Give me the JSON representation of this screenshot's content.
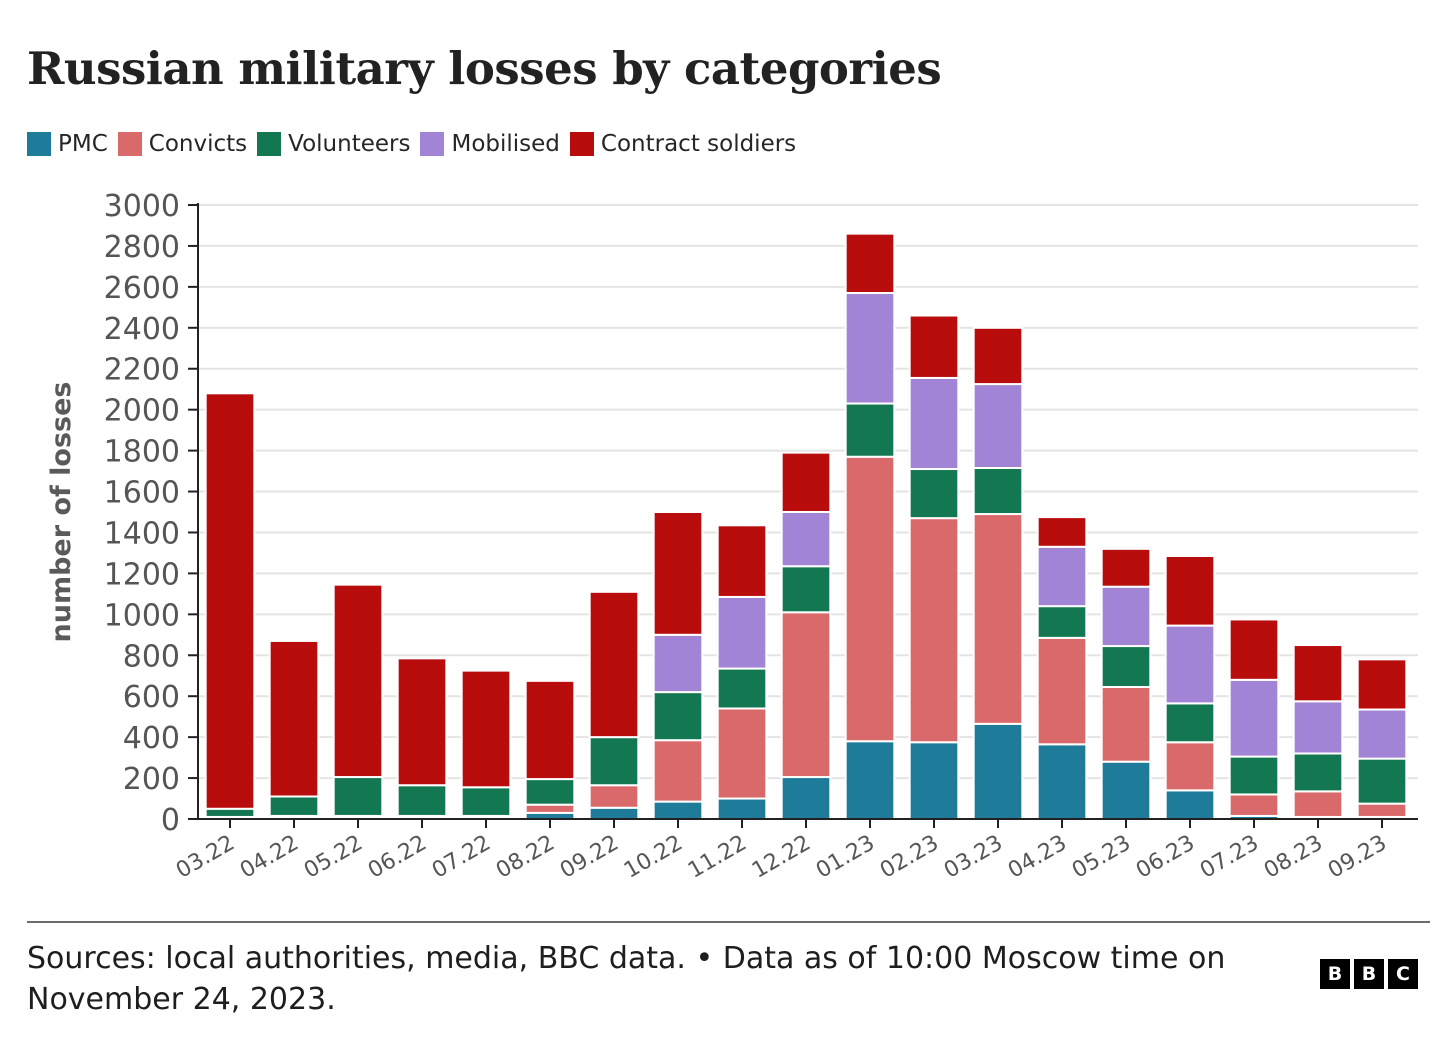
{
  "header": {
    "title": "Russian military losses by categories"
  },
  "footer": {
    "source_text": "Sources: local authorities, media, BBC data. • Data as of 10:00 Moscow time on November 24, 2023.",
    "logo_letters": [
      "B",
      "B",
      "C"
    ]
  },
  "chart_data": {
    "type": "bar",
    "stacked": true,
    "title": "Russian military losses by categories",
    "xlabel": "",
    "ylabel": "number of losses",
    "ylim": [
      0,
      3000
    ],
    "yticks": [
      0,
      200,
      400,
      600,
      800,
      1000,
      1200,
      1400,
      1600,
      1800,
      2000,
      2200,
      2400,
      2600,
      2800,
      3000
    ],
    "grid": true,
    "legend_position": "top-left",
    "categories": [
      "03.22",
      "04.22",
      "05.22",
      "06.22",
      "07.22",
      "08.22",
      "09.22",
      "10.22",
      "11.22",
      "12.22",
      "01.23",
      "02.23",
      "03.23",
      "04.23",
      "05.23",
      "06.23",
      "07.23",
      "08.23",
      "09.23"
    ],
    "series": [
      {
        "name": "PMC",
        "color": "#1e7b9a",
        "values": [
          5,
          10,
          10,
          10,
          10,
          30,
          55,
          85,
          100,
          205,
          380,
          375,
          465,
          365,
          280,
          140,
          15,
          10,
          10
        ]
      },
      {
        "name": "Convicts",
        "color": "#d9696a",
        "values": [
          5,
          5,
          5,
          5,
          5,
          40,
          110,
          300,
          440,
          805,
          1390,
          1095,
          1025,
          520,
          365,
          235,
          105,
          125,
          65
        ]
      },
      {
        "name": "Volunteers",
        "color": "#137852",
        "values": [
          40,
          95,
          190,
          150,
          140,
          125,
          235,
          235,
          195,
          225,
          260,
          240,
          225,
          155,
          200,
          190,
          185,
          185,
          220
        ]
      },
      {
        "name": "Mobilised",
        "color": "#a184d5",
        "values": [
          0,
          0,
          0,
          0,
          0,
          0,
          0,
          280,
          350,
          265,
          540,
          445,
          410,
          290,
          290,
          380,
          375,
          255,
          240
        ]
      },
      {
        "name": "Contract soldiers",
        "color": "#b90c0c",
        "values": [
          2030,
          760,
          940,
          620,
          570,
          480,
          710,
          600,
          350,
          290,
          290,
          305,
          275,
          145,
          185,
          340,
          295,
          275,
          245
        ]
      }
    ]
  }
}
